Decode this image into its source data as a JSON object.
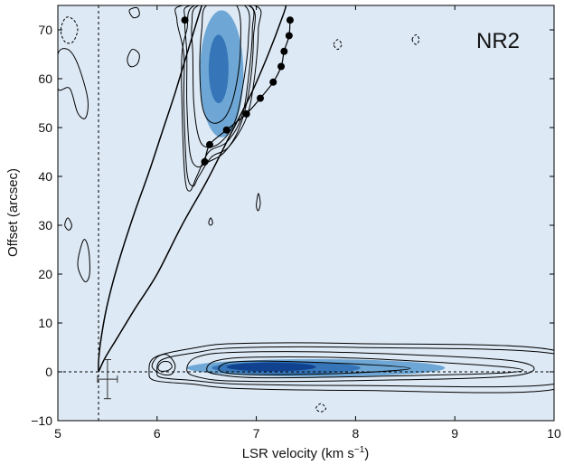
{
  "chart_data": {
    "type": "heatmap",
    "title": "",
    "panel_label": "NR2",
    "xlabel": {
      "main": "LSR velocity (km s",
      "sup": "−1",
      "close": ")"
    },
    "ylabel": "Offset (arcsec)",
    "xlim": [
      5,
      10
    ],
    "ylim": [
      -10,
      75
    ],
    "x_ticks": [
      5,
      6,
      7,
      8,
      9,
      10
    ],
    "y_ticks": [
      -10,
      0,
      10,
      20,
      30,
      40,
      50,
      60,
      70
    ],
    "grid": false,
    "colormap": [
      "#dde9f5",
      "#c4dbef",
      "#93c0e0",
      "#5a9bcf",
      "#2b6cb3",
      "#0b3a87"
    ],
    "reference_lines": {
      "vertical_x": 5.41,
      "horizontal_y": 0
    },
    "emission_blobs": [
      {
        "name": "upper-blob",
        "cx": 6.65,
        "cy": 61,
        "rx": 0.22,
        "ry": 13,
        "level": 3
      },
      {
        "name": "upper-core",
        "cx": 6.62,
        "cy": 62,
        "rx": 0.1,
        "ry": 7,
        "level": 4
      },
      {
        "name": "lower-bar",
        "cx": 7.6,
        "cy": 0.8,
        "rx": 1.3,
        "ry": 1.8,
        "level": 3
      },
      {
        "name": "lower-mid",
        "cx": 7.3,
        "cy": 0.8,
        "rx": 0.75,
        "ry": 1.3,
        "level": 4
      },
      {
        "name": "lower-core",
        "cx": 7.15,
        "cy": 1.0,
        "rx": 0.45,
        "ry": 0.9,
        "level": 5
      }
    ],
    "contours": {
      "upper": [
        [
          [
            6.3,
            70
          ],
          [
            6.38,
            75
          ],
          [
            6.92,
            75
          ],
          [
            6.96,
            70
          ],
          [
            6.92,
            60
          ],
          [
            6.85,
            52
          ],
          [
            6.7,
            47
          ],
          [
            6.52,
            45
          ],
          [
            6.4,
            40
          ],
          [
            6.33,
            37
          ],
          [
            6.28,
            40
          ],
          [
            6.25,
            55
          ],
          [
            6.25,
            65
          ]
        ],
        [
          [
            6.2,
            72
          ],
          [
            6.26,
            75
          ],
          [
            6.98,
            75
          ],
          [
            7.02,
            70
          ],
          [
            6.98,
            60
          ],
          [
            6.9,
            52
          ],
          [
            6.72,
            46
          ],
          [
            6.55,
            44
          ],
          [
            6.42,
            40
          ],
          [
            6.36,
            38
          ],
          [
            6.3,
            41
          ],
          [
            6.27,
            55
          ],
          [
            6.27,
            65
          ]
        ],
        [
          [
            6.28,
            72
          ],
          [
            6.34,
            75
          ],
          [
            6.93,
            75
          ],
          [
            6.97,
            68
          ],
          [
            6.93,
            58
          ],
          [
            6.83,
            50
          ],
          [
            6.68,
            45
          ],
          [
            6.52,
            43
          ],
          [
            6.4,
            42
          ],
          [
            6.33,
            45
          ],
          [
            6.3,
            55
          ],
          [
            6.3,
            65
          ]
        ],
        [
          [
            6.35,
            71
          ],
          [
            6.42,
            75
          ],
          [
            6.88,
            75
          ],
          [
            6.92,
            68
          ],
          [
            6.86,
            58
          ],
          [
            6.78,
            51
          ],
          [
            6.64,
            47
          ],
          [
            6.5,
            46
          ],
          [
            6.42,
            48
          ],
          [
            6.37,
            55
          ],
          [
            6.36,
            65
          ]
        ],
        [
          [
            6.45,
            70
          ],
          [
            6.5,
            75
          ],
          [
            6.8,
            75
          ],
          [
            6.84,
            66
          ],
          [
            6.78,
            57
          ],
          [
            6.68,
            52
          ],
          [
            6.55,
            51
          ],
          [
            6.46,
            54
          ],
          [
            6.43,
            62
          ]
        ]
      ],
      "lower": [
        [
          [
            5.92,
            0
          ],
          [
            5.98,
            3
          ],
          [
            6.35,
            4.8
          ],
          [
            6.8,
            5.8
          ],
          [
            8.0,
            5.8
          ],
          [
            10,
            4.4
          ],
          [
            10,
            -3.6
          ],
          [
            8.0,
            -3.8
          ],
          [
            6.8,
            -3.4
          ],
          [
            6.35,
            -2.5
          ],
          [
            5.98,
            -1.8
          ]
        ],
        [
          [
            6.0,
            0
          ],
          [
            6.05,
            2.5
          ],
          [
            6.38,
            3.9
          ],
          [
            6.8,
            4.9
          ],
          [
            8.0,
            5.0
          ],
          [
            10,
            3.7
          ],
          [
            10,
            -2.5
          ],
          [
            8.0,
            -2.8
          ],
          [
            6.8,
            -2.5
          ],
          [
            6.38,
            -1.8
          ],
          [
            6.05,
            -1.2
          ]
        ],
        [
          [
            6.3,
            0.5
          ],
          [
            6.4,
            3.0
          ],
          [
            6.8,
            4.0
          ],
          [
            8.0,
            3.9
          ],
          [
            9.6,
            2.2
          ],
          [
            9.6,
            -0.8
          ],
          [
            8.0,
            -1.8
          ],
          [
            6.8,
            -1.9
          ],
          [
            6.4,
            -1.0
          ]
        ],
        [
          [
            6.5,
            0.5
          ],
          [
            6.6,
            2.3
          ],
          [
            7.0,
            3.0
          ],
          [
            8.0,
            2.8
          ],
          [
            9.5,
            1.0
          ],
          [
            9.5,
            -0.2
          ],
          [
            8.0,
            -1.0
          ],
          [
            7.0,
            -1.2
          ],
          [
            6.6,
            -0.5
          ]
        ],
        [
          [
            6.62,
            0.6
          ],
          [
            6.72,
            1.9
          ],
          [
            7.1,
            2.2
          ],
          [
            8.0,
            1.6
          ],
          [
            8.55,
            0.7
          ],
          [
            8.0,
            -0.2
          ],
          [
            7.1,
            -0.6
          ],
          [
            6.72,
            -0.3
          ]
        ]
      ],
      "left_small": [
        [
          [
            5.95,
            1
          ],
          [
            6.0,
            3
          ],
          [
            6.1,
            3.5
          ],
          [
            6.18,
            1.5
          ],
          [
            6.15,
            -0.4
          ],
          [
            6.05,
            -0.5
          ]
        ],
        [
          [
            6.01,
            1
          ],
          [
            6.05,
            2
          ],
          [
            6.12,
            2
          ],
          [
            6.15,
            1
          ],
          [
            6.1,
            0.2
          ],
          [
            6.03,
            0.2
          ]
        ]
      ],
      "specks": [
        [
          [
            5.0,
            65
          ],
          [
            5.1,
            66
          ],
          [
            5.2,
            63
          ],
          [
            5.3,
            56
          ],
          [
            5.28,
            52
          ],
          [
            5.2,
            53
          ],
          [
            5.12,
            58
          ],
          [
            5.0,
            58
          ]
        ],
        [
          [
            5.7,
            64
          ],
          [
            5.75,
            66
          ],
          [
            5.82,
            65
          ],
          [
            5.8,
            63
          ],
          [
            5.73,
            62.5
          ]
        ],
        [
          [
            5.72,
            74
          ],
          [
            5.8,
            74.5
          ],
          [
            5.82,
            73
          ],
          [
            5.76,
            72.5
          ]
        ],
        [
          [
            5.2,
            22
          ],
          [
            5.26,
            27
          ],
          [
            5.31,
            25
          ],
          [
            5.32,
            20
          ],
          [
            5.27,
            18.5
          ]
        ],
        [
          [
            5.07,
            30
          ],
          [
            5.1,
            31.5
          ],
          [
            5.14,
            30
          ],
          [
            5.11,
            29
          ]
        ],
        [
          [
            6.52,
            30.5
          ],
          [
            6.54,
            31.5
          ],
          [
            6.56,
            30.5
          ],
          [
            6.54,
            30
          ]
        ],
        [
          [
            7.0,
            34
          ],
          [
            7.02,
            36.5
          ],
          [
            7.04,
            34.5
          ],
          [
            7.02,
            33
          ]
        ]
      ],
      "specks_dashed": [
        [
          [
            5.03,
            70
          ],
          [
            5.08,
            72.5
          ],
          [
            5.16,
            72
          ],
          [
            5.2,
            70
          ],
          [
            5.15,
            67.5
          ],
          [
            5.07,
            67.6
          ]
        ],
        [
          [
            7.78,
            67
          ],
          [
            7.82,
            68
          ],
          [
            7.86,
            67
          ],
          [
            7.82,
            66
          ]
        ],
        [
          [
            8.57,
            68
          ],
          [
            8.61,
            69
          ],
          [
            8.64,
            68
          ],
          [
            8.61,
            67
          ]
        ],
        [
          [
            7.6,
            -7.5
          ],
          [
            7.65,
            -6.5
          ],
          [
            7.7,
            -7.5
          ],
          [
            7.65,
            -8.2
          ]
        ]
      ]
    },
    "model_curve": [
      [
        5.41,
        0
      ],
      [
        5.41,
        2
      ],
      [
        5.43,
        6
      ],
      [
        5.48,
        12
      ],
      [
        5.55,
        18
      ],
      [
        5.65,
        25
      ],
      [
        5.78,
        33
      ],
      [
        5.92,
        41
      ],
      [
        6.05,
        49
      ],
      [
        6.18,
        57
      ],
      [
        6.3,
        65
      ],
      [
        6.42,
        73
      ],
      [
        6.45,
        75
      ]
    ],
    "model_curve_inner": [
      [
        5.41,
        0
      ],
      [
        5.48,
        3
      ],
      [
        5.6,
        7
      ],
      [
        5.78,
        13
      ],
      [
        6.0,
        20
      ],
      [
        6.25,
        30
      ],
      [
        6.5,
        39
      ],
      [
        6.75,
        49
      ],
      [
        6.95,
        57
      ],
      [
        7.12,
        65
      ],
      [
        7.27,
        73
      ],
      [
        7.3,
        75
      ]
    ],
    "fit_points": {
      "x": [
        6.28,
        6.48,
        6.53,
        6.7,
        6.9,
        7.04,
        7.17,
        7.25,
        7.28,
        7.33,
        7.34
      ],
      "y": [
        72.0,
        43.0,
        46.5,
        49.5,
        52.8,
        56.0,
        59.3,
        62.5,
        65.6,
        68.8,
        72.0
      ]
    },
    "error_bar": {
      "x": 5.5,
      "y": -1.5,
      "xerr": 0.1,
      "yerr": 4.0
    }
  }
}
